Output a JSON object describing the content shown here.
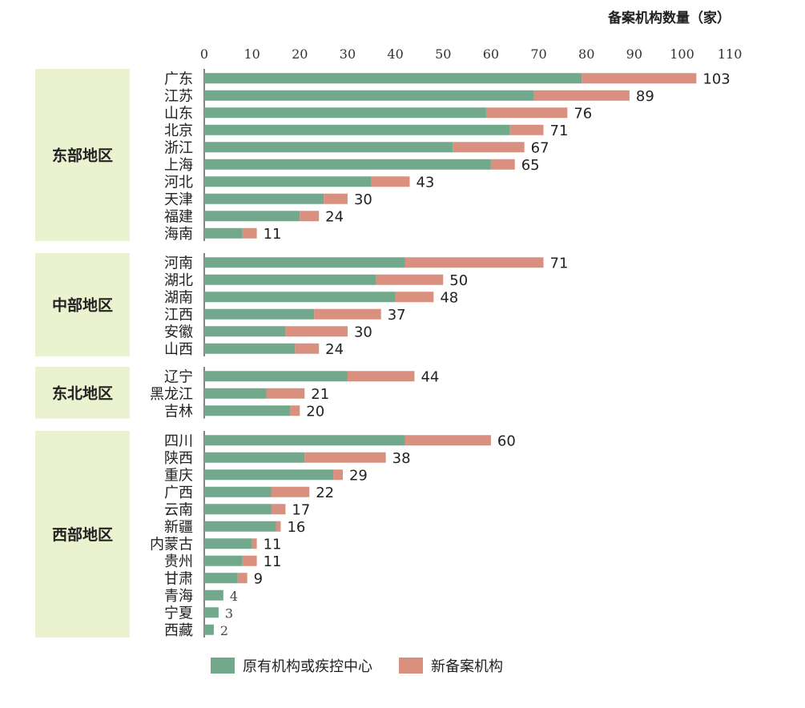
{
  "chart_data": {
    "type": "bar",
    "orientation": "horizontal",
    "stacked": true,
    "unit_label": "备案机构数量（家）",
    "xlim": [
      0,
      110
    ],
    "xticks": [
      0,
      10,
      20,
      30,
      40,
      50,
      60,
      70,
      80,
      90,
      100,
      110
    ],
    "legend_position": "bottom",
    "series": [
      {
        "name": "原有机构或疾控中心",
        "color": "#72a88c"
      },
      {
        "name": "新备案机构",
        "color": "#d9907e"
      }
    ],
    "groups": [
      {
        "region": "东部地区",
        "items": [
          {
            "name": "广东",
            "existing": 79,
            "total": 103
          },
          {
            "name": "江苏",
            "existing": 69,
            "total": 89
          },
          {
            "name": "山东",
            "existing": 59,
            "total": 76
          },
          {
            "name": "北京",
            "existing": 64,
            "total": 71
          },
          {
            "name": "浙江",
            "existing": 52,
            "total": 67
          },
          {
            "name": "上海",
            "existing": 60,
            "total": 65
          },
          {
            "name": "河北",
            "existing": 35,
            "total": 43
          },
          {
            "name": "天津",
            "existing": 25,
            "total": 30
          },
          {
            "name": "福建",
            "existing": 20,
            "total": 24
          },
          {
            "name": "海南",
            "existing": 8,
            "total": 11
          }
        ]
      },
      {
        "region": "中部地区",
        "items": [
          {
            "name": "河南",
            "existing": 42,
            "total": 71
          },
          {
            "name": "湖北",
            "existing": 36,
            "total": 50
          },
          {
            "name": "湖南",
            "existing": 40,
            "total": 48
          },
          {
            "name": "江西",
            "existing": 23,
            "total": 37
          },
          {
            "name": "安徽",
            "existing": 17,
            "total": 30
          },
          {
            "name": "山西",
            "existing": 19,
            "total": 24
          }
        ]
      },
      {
        "region": "东北地区",
        "items": [
          {
            "name": "辽宁",
            "existing": 30,
            "total": 44
          },
          {
            "name": "黑龙江",
            "existing": 13,
            "total": 21
          },
          {
            "name": "吉林",
            "existing": 18,
            "total": 20
          }
        ]
      },
      {
        "region": "西部地区",
        "items": [
          {
            "name": "四川",
            "existing": 42,
            "total": 60
          },
          {
            "name": "陕西",
            "existing": 21,
            "total": 38
          },
          {
            "name": "重庆",
            "existing": 27,
            "total": 29
          },
          {
            "name": "广西",
            "existing": 14,
            "total": 22
          },
          {
            "name": "云南",
            "existing": 14,
            "total": 17
          },
          {
            "name": "新疆",
            "existing": 15,
            "total": 16
          },
          {
            "name": "内蒙古",
            "existing": 10,
            "total": 11
          },
          {
            "name": "贵州",
            "existing": 8,
            "total": 11
          },
          {
            "name": "甘肃",
            "existing": 7,
            "total": 9
          },
          {
            "name": "青海",
            "existing": 4,
            "total": 4
          },
          {
            "name": "宁夏",
            "existing": 3,
            "total": 3
          },
          {
            "name": "西藏",
            "existing": 2,
            "total": 2
          }
        ]
      }
    ]
  }
}
